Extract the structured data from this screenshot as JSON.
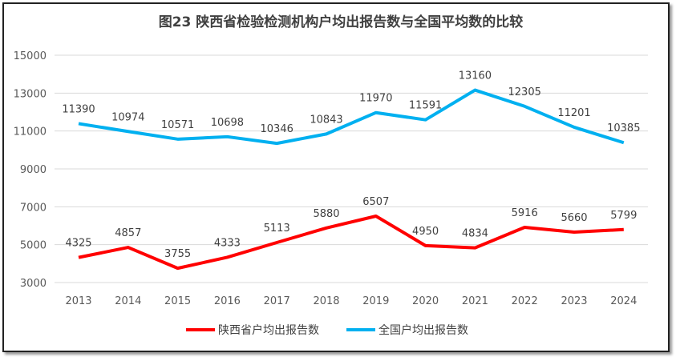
{
  "chart_data": {
    "type": "line",
    "title": "图23 陕西省检验检测机构户均出报告数与全国平均数的比较",
    "categories": [
      "2013",
      "2014",
      "2015",
      "2016",
      "2017",
      "2018",
      "2019",
      "2020",
      "2021",
      "2022",
      "2023",
      "2024"
    ],
    "series": [
      {
        "name": "陕西省户均出报告数",
        "color": "#ff0000",
        "values": [
          4325,
          4857,
          3755,
          4333,
          5113,
          5880,
          6507,
          4950,
          4834,
          5916,
          5660,
          5799
        ]
      },
      {
        "name": "全国户均出报告数",
        "color": "#00b0f0",
        "values": [
          11390,
          10974,
          10571,
          10698,
          10346,
          10843,
          11970,
          11591,
          13160,
          12305,
          11201,
          10385
        ]
      }
    ],
    "ylim": [
      3000,
      15000
    ],
    "yticks": [
      "3000",
      "5000",
      "7000",
      "9000",
      "11000",
      "13000",
      "15000"
    ],
    "grid": true,
    "legend": "bottom",
    "xlabel": "",
    "ylabel": ""
  }
}
